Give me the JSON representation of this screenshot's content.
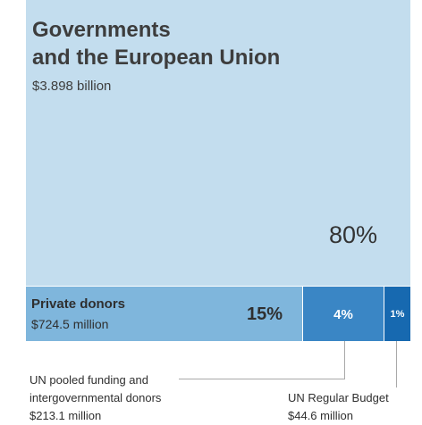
{
  "chart_data": {
    "type": "treemap",
    "title": "",
    "segments": [
      {
        "name_lines": [
          "Governments",
          "and the European Union"
        ],
        "amount": "$3.898 billion",
        "value_usd_millions": 3898,
        "percent_label": "80%",
        "percent": 80,
        "color": "#c3ddee"
      },
      {
        "name_lines": [
          "Private donors"
        ],
        "amount": "$724.5 million",
        "value_usd_millions": 724.5,
        "percent_label": "15%",
        "percent": 15,
        "color": "#7fb6dc"
      },
      {
        "name_lines": [
          "UN pooled funding and",
          "intergovernmental donors"
        ],
        "amount": "$213.1 million",
        "value_usd_millions": 213.1,
        "percent_label": "4%",
        "percent": 4,
        "color": "#3a86c5"
      },
      {
        "name_lines": [
          "UN Regular Budget"
        ],
        "amount": "$44.6 million",
        "value_usd_millions": 44.6,
        "percent_label": "1%",
        "percent": 1,
        "color": "#1769b0"
      }
    ]
  }
}
